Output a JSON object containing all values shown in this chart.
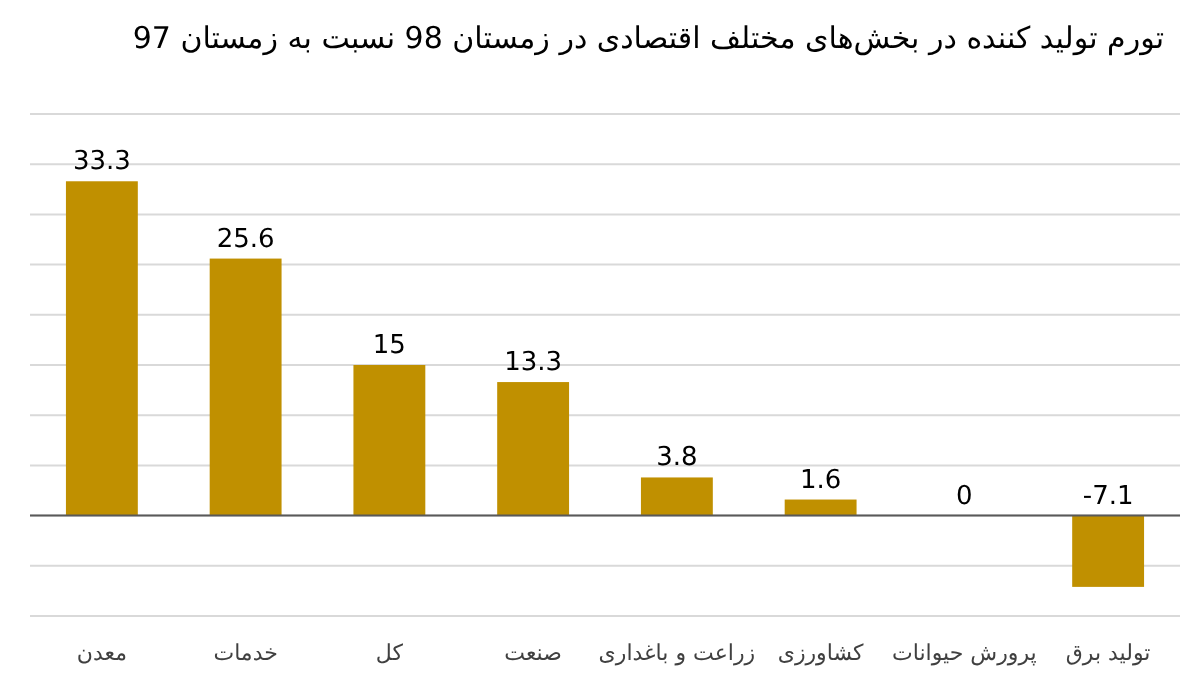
{
  "chart_data": {
    "type": "bar",
    "title": "تورم تولید کننده در بخش‌های مختلف اقتصادی در زمستان 98 نسبت به زمستان 97",
    "categories": [
      "معدن",
      "خدمات",
      "کل",
      "صنعت",
      "زراعت و باغداری",
      "کشاورزی",
      "پرورش حیوانات",
      "تولید برق"
    ],
    "values": [
      33.3,
      25.6,
      15,
      13.3,
      3.8,
      1.6,
      0,
      -7.1
    ],
    "color": "#c09000",
    "ylim": [
      -10,
      40
    ],
    "yticks": [
      {
        "value": -10,
        "label": null
      },
      {
        "value": -5,
        "label": null
      },
      {
        "value": 0,
        "label": null
      },
      {
        "value": 5,
        "label": null
      },
      {
        "value": 10,
        "label": null
      },
      {
        "value": 15,
        "label": null
      },
      {
        "value": 20,
        "label": null
      },
      {
        "value": 25,
        "label": null
      },
      {
        "value": 30,
        "label": null
      },
      {
        "value": 35,
        "label": null
      },
      {
        "value": 40,
        "label": null
      }
    ],
    "tick_labels": "x",
    "grid": "y",
    "data_labels": true
  }
}
